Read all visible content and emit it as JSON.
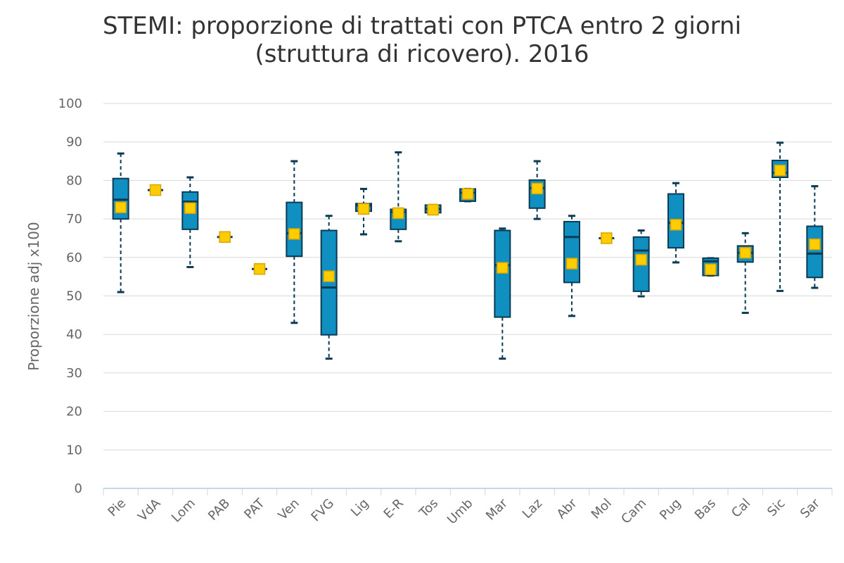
{
  "chart_data": {
    "type": "boxplot",
    "title_line1": "STEMI: proporzione di trattati con PTCA entro 2 giorni",
    "title_line2": "(struttura di ricovero). 2016",
    "ylabel": "Proporzione adj x100",
    "xlabel": "",
    "ylim": [
      0,
      100
    ],
    "yticks": [
      0,
      10,
      20,
      30,
      40,
      50,
      60,
      70,
      80,
      90,
      100
    ],
    "grid": true,
    "legend": "none",
    "categories": [
      "Pie",
      "VdA",
      "Lom",
      "PAB",
      "PAT",
      "Ven",
      "FVG",
      "Lig",
      "E-R",
      "Tos",
      "Umb",
      "Mar",
      "Laz",
      "Abr",
      "Mol",
      "Cam",
      "Pug",
      "Bas",
      "Cal",
      "Sic",
      "Sar"
    ],
    "boxes": [
      {
        "min": 51.0,
        "q1": 70.0,
        "median": 75.0,
        "q3": 80.5,
        "max": 87.0,
        "mean": 73.0
      },
      {
        "min": 77.5,
        "q1": 77.5,
        "median": 77.5,
        "q3": 77.5,
        "max": 77.5,
        "mean": 77.5
      },
      {
        "min": 57.5,
        "q1": 67.3,
        "median": 74.5,
        "q3": 77.0,
        "max": 80.8,
        "mean": 72.8
      },
      {
        "min": 65.3,
        "q1": 65.3,
        "median": 65.3,
        "q3": 65.3,
        "max": 65.3,
        "mean": 65.3
      },
      {
        "min": 57.0,
        "q1": 57.0,
        "median": 57.0,
        "q3": 57.0,
        "max": 57.0,
        "mean": 57.0
      },
      {
        "min": 43.0,
        "q1": 60.3,
        "median": 66.3,
        "q3": 74.3,
        "max": 85.0,
        "mean": 66.1
      },
      {
        "min": 33.7,
        "q1": 39.9,
        "median": 52.2,
        "q3": 67.0,
        "max": 70.8,
        "mean": 55.1
      },
      {
        "min": 66.0,
        "q1": 72.0,
        "median": 73.5,
        "q3": 74.0,
        "max": 77.8,
        "mean": 72.6
      },
      {
        "min": 64.2,
        "q1": 67.3,
        "median": 71.8,
        "q3": 72.5,
        "max": 87.3,
        "mean": 71.5
      },
      {
        "min": 71.6,
        "q1": 71.6,
        "median": 72.6,
        "q3": 73.6,
        "max": 73.6,
        "mean": 72.4
      },
      {
        "min": 74.6,
        "q1": 74.6,
        "median": 76.8,
        "q3": 77.8,
        "max": 77.8,
        "mean": 76.5
      },
      {
        "min": 33.7,
        "q1": 44.5,
        "median": 58.0,
        "q3": 67.0,
        "max": 67.5,
        "mean": 57.3
      },
      {
        "min": 70.0,
        "q1": 72.8,
        "median": 78.0,
        "q3": 80.1,
        "max": 85.0,
        "mean": 77.9
      },
      {
        "min": 44.8,
        "q1": 53.5,
        "median": 65.3,
        "q3": 69.3,
        "max": 70.8,
        "mean": 58.4
      },
      {
        "min": 65.0,
        "q1": 65.0,
        "median": 65.0,
        "q3": 65.0,
        "max": 65.0,
        "mean": 65.0
      },
      {
        "min": 49.9,
        "q1": 51.2,
        "median": 61.8,
        "q3": 65.3,
        "max": 67.0,
        "mean": 59.4
      },
      {
        "min": 58.7,
        "q1": 62.5,
        "median": 69.0,
        "q3": 76.5,
        "max": 79.3,
        "mean": 68.5
      },
      {
        "min": 55.3,
        "q1": 55.3,
        "median": 59.0,
        "q3": 59.8,
        "max": 59.8,
        "mean": 56.9
      },
      {
        "min": 45.6,
        "q1": 58.8,
        "median": 61.2,
        "q3": 63.0,
        "max": 66.3,
        "mean": 61.2
      },
      {
        "min": 51.3,
        "q1": 80.8,
        "median": 82.0,
        "q3": 85.2,
        "max": 89.8,
        "mean": 82.6
      },
      {
        "min": 52.1,
        "q1": 54.8,
        "median": 61.0,
        "q3": 68.1,
        "max": 78.5,
        "mean": 63.4
      }
    ],
    "colors": {
      "box_fill": "#1090c0",
      "box_stroke": "#0b3a54",
      "whisker": "#0b3a54",
      "mean_fill": "#ffcc00",
      "mean_stroke": "#d9a400",
      "grid": "#d9d9d9",
      "axis": "#c6d9e6"
    }
  }
}
